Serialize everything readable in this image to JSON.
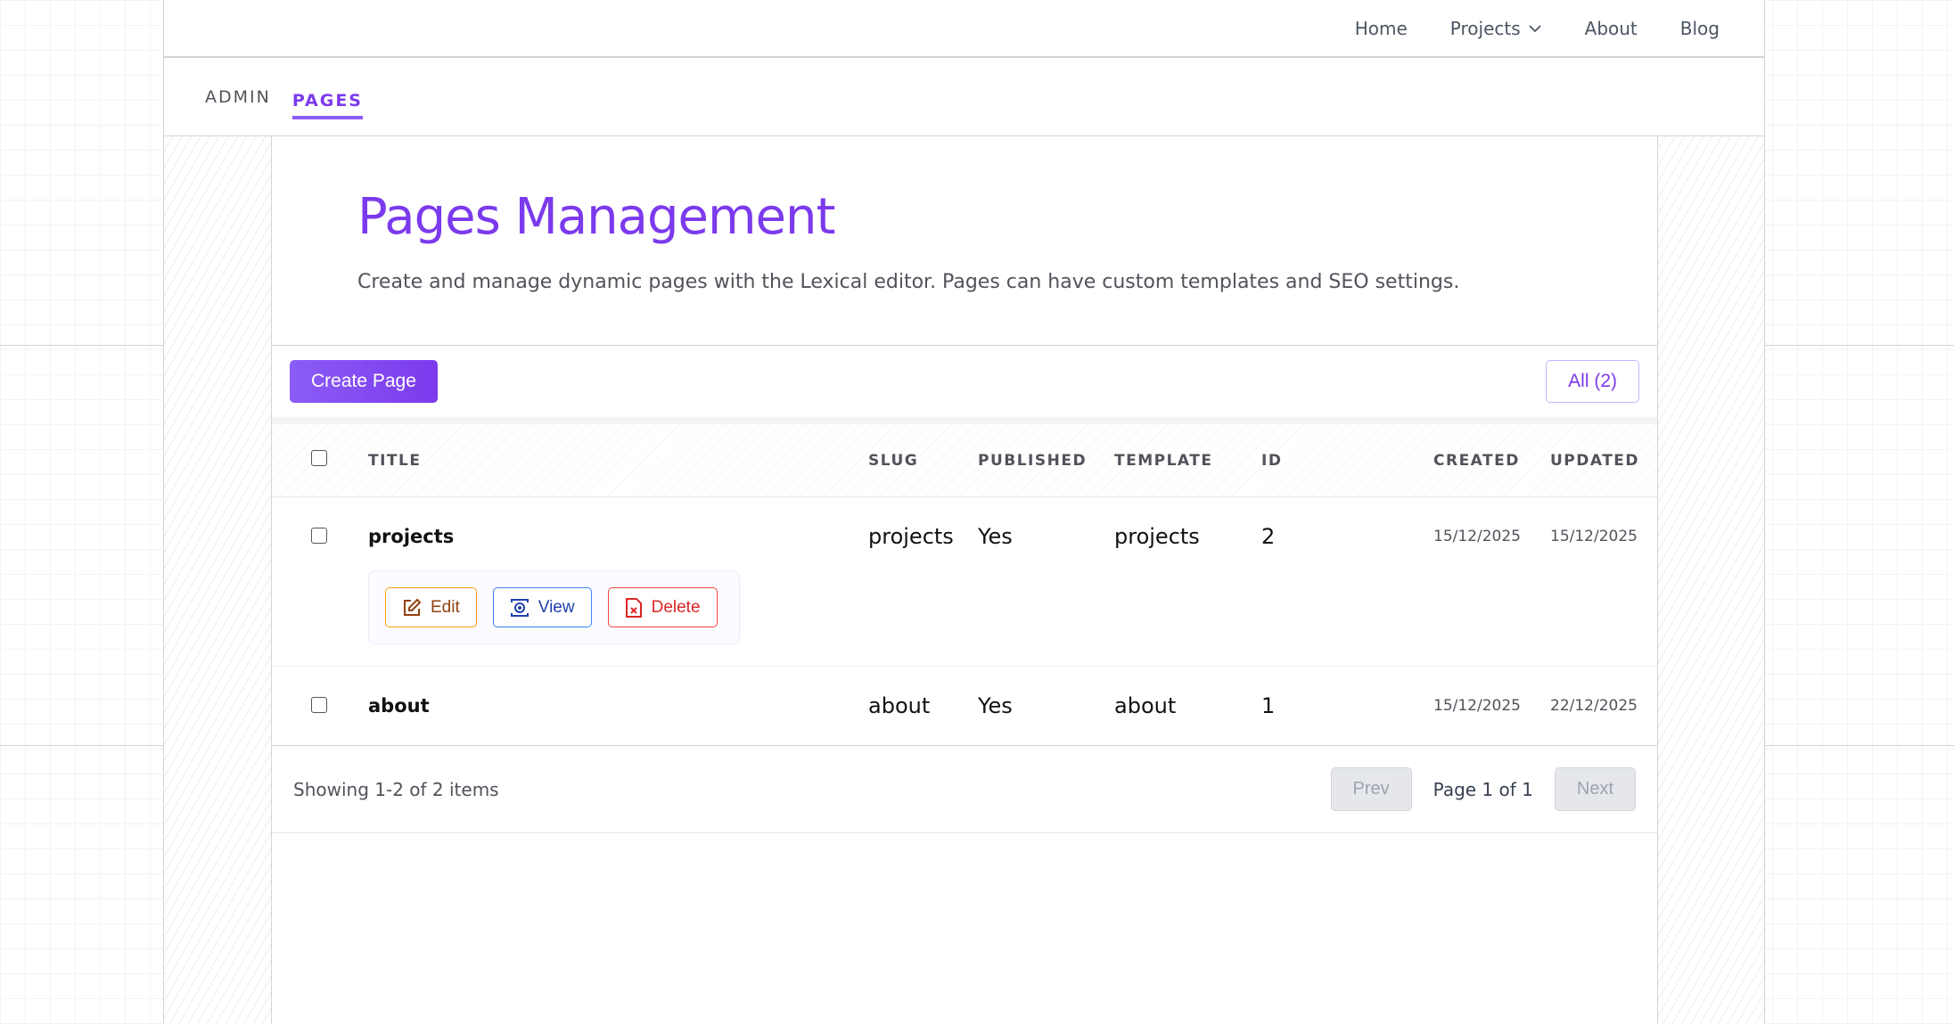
{
  "nav": {
    "items": [
      "Home",
      "Projects",
      "About",
      "Blog"
    ]
  },
  "tabs": [
    "ADMIN",
    "PAGES"
  ],
  "hero": {
    "title": "Pages Management",
    "description": "Create and manage dynamic pages with the Lexical editor. Pages can have custom templates and SEO settings."
  },
  "toolbar": {
    "create": "Create Page",
    "filter": "All (2)"
  },
  "table": {
    "columns": [
      "TITLE",
      "SLUG",
      "PUBLISHED",
      "TEMPLATE",
      "ID",
      "CREATED",
      "UPDATED"
    ],
    "rows": [
      {
        "title": "projects",
        "slug": "projects",
        "published": "Yes",
        "template": "projects",
        "id": "2",
        "created": "15/12/2025",
        "updated": "15/12/2025"
      },
      {
        "title": "about",
        "slug": "about",
        "published": "Yes",
        "template": "about",
        "id": "1",
        "created": "15/12/2025",
        "updated": "22/12/2025"
      }
    ],
    "actions": {
      "edit": "Edit",
      "view": "View",
      "delete": "Delete"
    }
  },
  "footer": {
    "showing": "Showing 1-2 of 2 items",
    "prev": "Prev",
    "page": "Page 1 of 1",
    "next": "Next"
  },
  "colors": {
    "accent": "#7c3aed",
    "edit": "#f59e0b",
    "view": "#3b82f6",
    "delete": "#ef4444"
  }
}
